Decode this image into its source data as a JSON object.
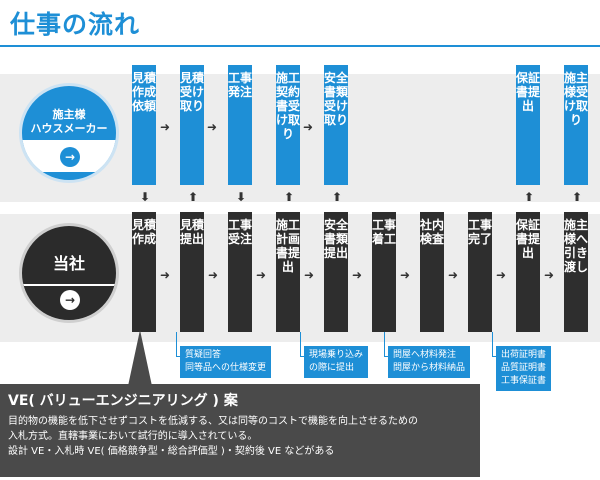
{
  "title": "仕事の流れ",
  "client": {
    "line1": "施主様",
    "line2": "ハウスメーカー",
    "arrow": "→"
  },
  "us": {
    "label": "当社",
    "arrow": "→"
  },
  "client_steps": [
    {
      "label": "見積作成依頼"
    },
    {
      "label": "見積受け取り"
    },
    {
      "label": "工事発注"
    },
    {
      "label": "施工契約書受け取り"
    },
    {
      "label": "安全書類受け取り"
    },
    {
      "label": "保証書提出"
    },
    {
      "label": "施主様受け取り"
    }
  ],
  "our_steps": [
    {
      "label": "見積作成"
    },
    {
      "label": "見積提出"
    },
    {
      "label": "工事受注"
    },
    {
      "label": "施工計画書提出"
    },
    {
      "label": "安全書類提出"
    },
    {
      "label": "工事着工"
    },
    {
      "label": "社内検査"
    },
    {
      "label": "工事完了"
    },
    {
      "label": "保証書提出"
    },
    {
      "label": "施主様へ引き渡し"
    }
  ],
  "notes": [
    {
      "line1": "質疑回答",
      "line2": "同等品への仕様変更"
    },
    {
      "line1": "現場乗り込み",
      "line2": "の際に提出"
    },
    {
      "line1": "問屋へ材料発注",
      "line2": "問屋から材料納品"
    },
    {
      "line1": "出荷証明書",
      "line2": "品質証明書",
      "line3": "工事保証書"
    }
  ],
  "ve": {
    "title": "VE( バリューエンジニアリング ) 案",
    "line1": "目的物の機能を低下させずコストを低減する、又は同等のコストで機能を向上させるための",
    "line2": "入札方式。直轄事業において試行的に導入されている。",
    "line3": "設計 VE・入札時 VE( 価格競争型・総合評価型 )・契約後 VE などがある"
  },
  "colors": {
    "accent": "#1e8fd6",
    "dark": "#2e2e2e",
    "panel": "#4a4a4a",
    "lane": "#ededed"
  }
}
